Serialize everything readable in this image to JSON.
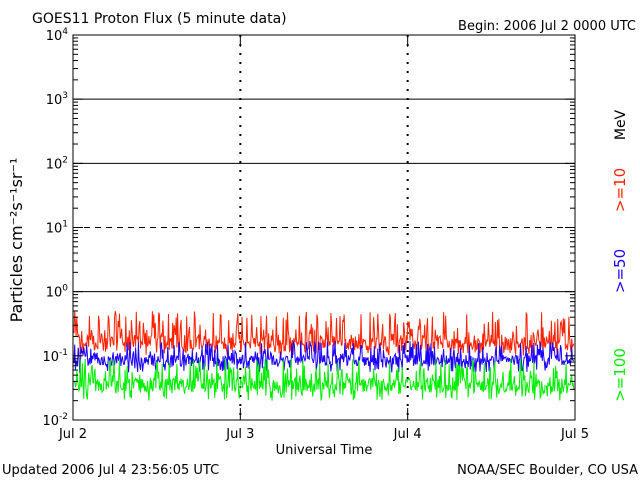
{
  "chart_data": {
    "type": "line",
    "title": "GOES11 Proton Flux (5 minute data)",
    "begin_label": "Begin: 2006 Jul 2 0000 UTC",
    "xlabel": "Universal Time",
    "ylabel_html": "Particles cm⁻²s⁻¹sr⁻¹",
    "footer_left": "Updated 2006 Jul  4 23:56:05 UTC",
    "footer_right": "NOAA/SEC Boulder, CO USA",
    "energy_unit": "MeV",
    "y_scale": "log",
    "ylim": [
      0.01,
      10000
    ],
    "y_ticks": [
      {
        "value": 0.01,
        "base": "10",
        "exp": "-2"
      },
      {
        "value": 0.1,
        "base": "10",
        "exp": "-1"
      },
      {
        "value": 1,
        "base": "10",
        "exp": "0"
      },
      {
        "value": 10,
        "base": "10",
        "exp": "1"
      },
      {
        "value": 100,
        "base": "10",
        "exp": "2"
      },
      {
        "value": 1000,
        "base": "10",
        "exp": "3"
      },
      {
        "value": 10000,
        "base": "10",
        "exp": "4"
      }
    ],
    "x_ticks": [
      "Jul 2",
      "Jul 3",
      "Jul 4",
      "Jul 5"
    ],
    "xlim": [
      "2006-07-02",
      "2006-07-05"
    ],
    "reference_lines": [
      {
        "value": 1,
        "style": "solid"
      },
      {
        "value": 10,
        "style": "dashed"
      },
      {
        "value": 100,
        "style": "solid"
      },
      {
        "value": 1000,
        "style": "solid"
      }
    ],
    "series": [
      {
        "name": ">=10",
        "color": "#ff2200",
        "baseline": 0.16,
        "range": [
          0.1,
          0.5
        ]
      },
      {
        "name": ">=50",
        "color": "#1a00ff",
        "baseline": 0.085,
        "range": [
          0.055,
          0.17
        ]
      },
      {
        "name": ">=100",
        "color": "#00ee00",
        "baseline": 0.035,
        "range": [
          0.02,
          0.09
        ]
      }
    ]
  }
}
